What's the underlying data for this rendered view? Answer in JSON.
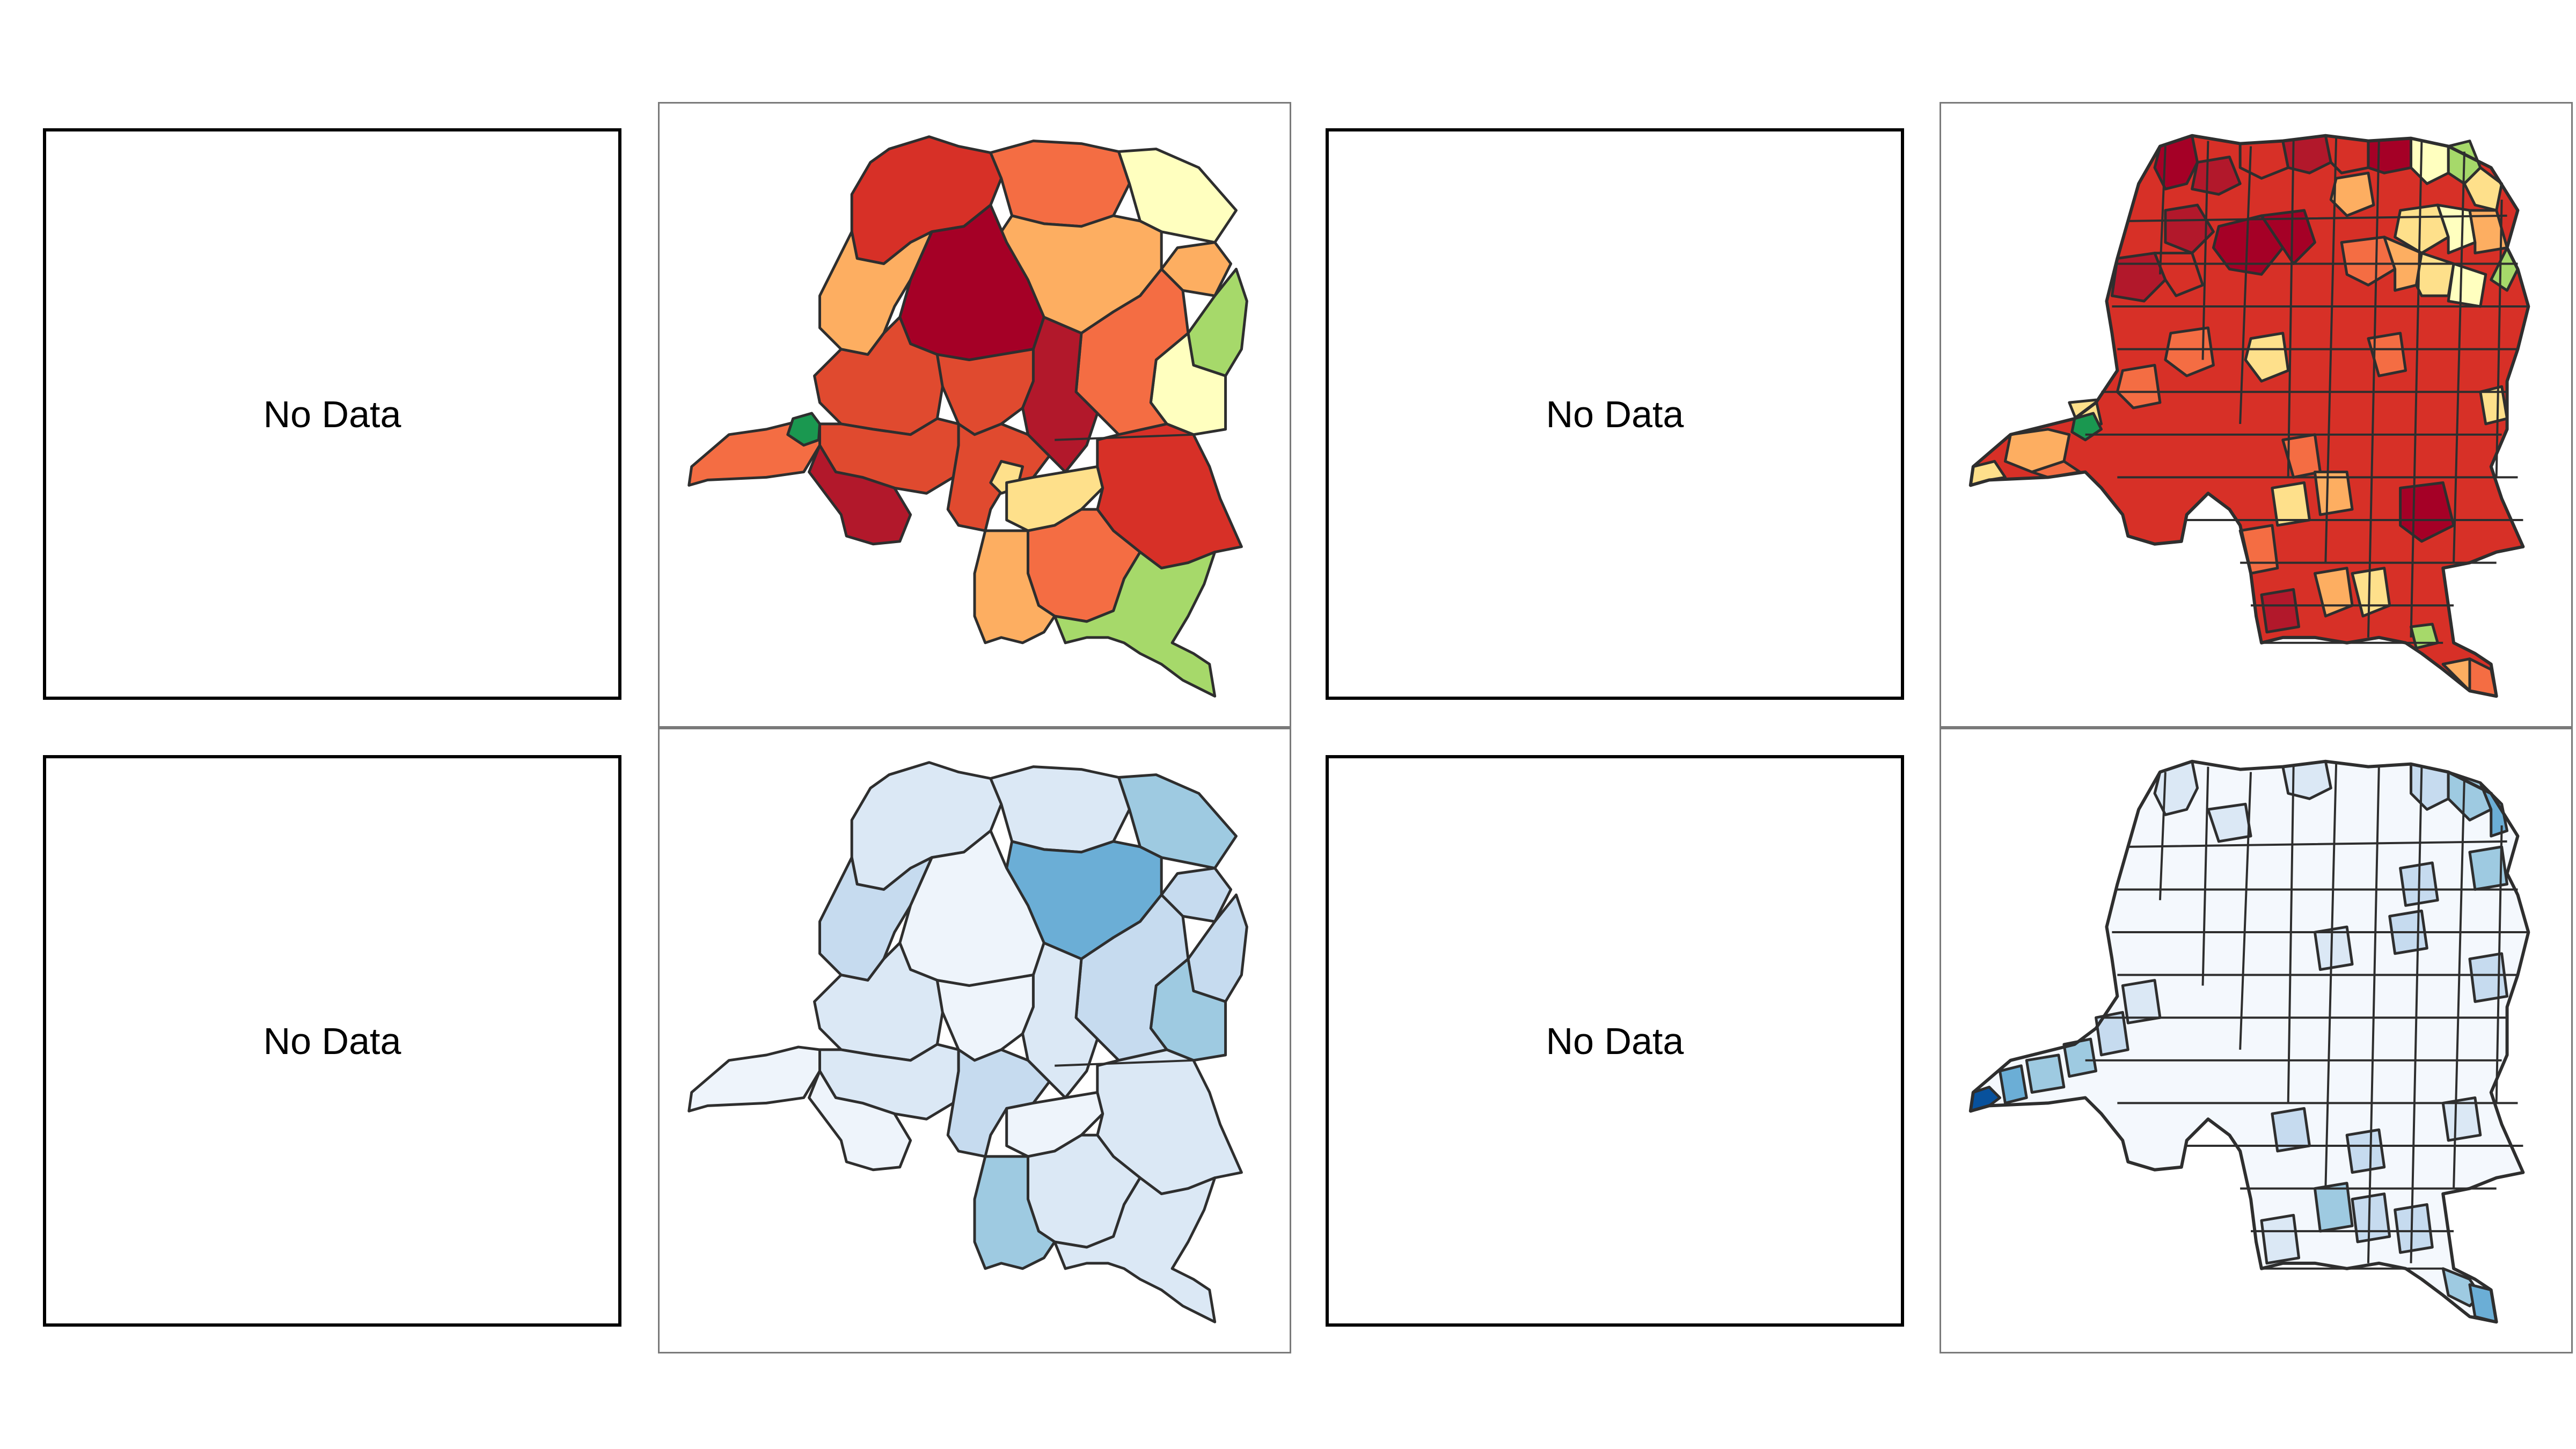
{
  "panels": [
    {
      "id": "top-left",
      "kind": "no-data",
      "label": "No Data"
    },
    {
      "id": "top-center-left",
      "kind": "choropleth",
      "palette": "RdYlGn",
      "level": "province",
      "colors": {
        "darkest_red": "#a50026",
        "dark_red": "#b2182b",
        "red": "#d73027",
        "red_orange": "#e04a2f",
        "orange": "#f46d43",
        "light_orange": "#fdae61",
        "pale_orange": "#fee08b",
        "pale_yellow": "#ffffbf",
        "yellow_green": "#d9ef8b",
        "light_green": "#a6d96a",
        "green": "#1a9850"
      }
    },
    {
      "id": "top-center-right",
      "kind": "no-data",
      "label": "No Data"
    },
    {
      "id": "top-right",
      "kind": "choropleth",
      "palette": "RdYlGn",
      "level": "health-zone",
      "colors": {
        "darkest_red": "#a50026",
        "dark_red": "#b2182b",
        "red": "#d73027",
        "orange": "#f46d43",
        "light_orange": "#fdae61",
        "pale_orange": "#fee08b",
        "pale_yellow": "#ffffbf",
        "light_green": "#a6d96a",
        "green": "#1a9850"
      }
    },
    {
      "id": "bottom-left",
      "kind": "no-data",
      "label": "No Data"
    },
    {
      "id": "bottom-center-left",
      "kind": "choropleth",
      "palette": "Blues",
      "level": "province",
      "colors": {
        "lightest": "#eef4fb",
        "light": "#dbe8f5",
        "light_mid": "#c6dbef",
        "mid": "#9ecae1",
        "strong": "#6baed6"
      }
    },
    {
      "id": "bottom-center-right",
      "kind": "no-data",
      "label": "No Data"
    },
    {
      "id": "bottom-right",
      "kind": "choropleth",
      "palette": "Blues",
      "level": "health-zone",
      "colors": {
        "lightest": "#f4f8fd",
        "light": "#dbe8f5",
        "light_mid": "#c6dbef",
        "mid": "#9ecae1",
        "strong": "#6baed6",
        "darkest": "#08519c"
      }
    }
  ]
}
